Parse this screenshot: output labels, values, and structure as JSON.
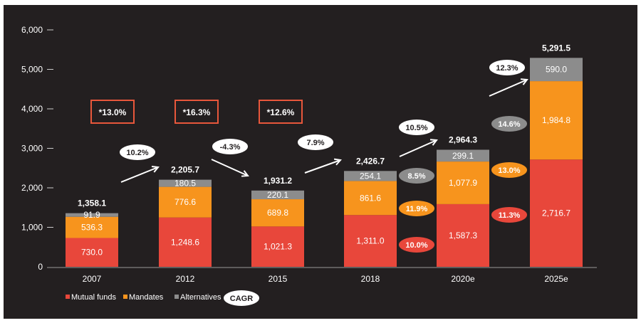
{
  "chart_data": {
    "type": "bar",
    "stacked": true,
    "categories": [
      "2007",
      "2012",
      "2015",
      "2018",
      "2020e",
      "2025e"
    ],
    "series": [
      {
        "name": "Mutual funds",
        "color": "#e8473b",
        "values": [
          730.0,
          1248.6,
          1021.3,
          1311.0,
          1587.3,
          2716.7
        ],
        "labels": [
          "730.0",
          "1,248.6",
          "1,021.3",
          "1,311.0",
          "1,587.3",
          "2,716.7"
        ]
      },
      {
        "name": "Mandates",
        "color": "#f7941d",
        "values": [
          536.3,
          776.6,
          689.8,
          861.6,
          1077.9,
          1984.8
        ],
        "labels": [
          "536.3",
          "776.6",
          "689.8",
          "861.6",
          "1,077.9",
          "1,984.8"
        ]
      },
      {
        "name": "Alternatives",
        "color": "#8c8c8c",
        "values": [
          91.9,
          180.5,
          220.1,
          254.1,
          299.1,
          590.0
        ],
        "labels": [
          "91.9",
          "180.5",
          "220.1",
          "254.1",
          "299.1",
          "590.0"
        ]
      }
    ],
    "totals": [
      "1,358.1",
      "2,205.7",
      "1,931.2",
      "2,426.7",
      "2,964.3",
      "5,291.5"
    ],
    "yticks": [
      "0",
      "1,000",
      "2,000",
      "3,000",
      "4,000",
      "5,000",
      "6,000"
    ],
    "ylim": [
      0,
      6000
    ],
    "boxed_cagr": [
      "*13.0%",
      "*16.3%",
      "*12.6%"
    ],
    "total_cagr": [
      "10.2%",
      "-4.3%",
      "7.9%",
      "10.5%",
      "12.3%"
    ],
    "segment_cagr_2018_2020": {
      "Alternatives": "8.5%",
      "Mandates": "11.9%",
      "Mutual funds": "10.0%"
    },
    "segment_cagr_2020_2025": {
      "Alternatives": "14.6%",
      "Mandates": "13.0%",
      "Mutual funds": "11.3%"
    },
    "legend": {
      "items": [
        "Mutual funds",
        "Mandates",
        "Alternatives"
      ],
      "cagr_label": "CAGR",
      "placement": "bottom-left"
    }
  }
}
